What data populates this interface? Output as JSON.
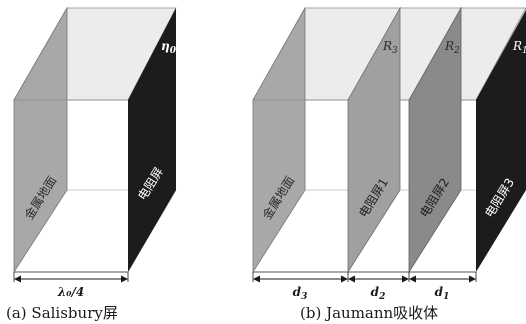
{
  "panel_a": {
    "caption": "(a) Salisbury屏",
    "ground_label": "金属地面",
    "screen_label": "电阻屏",
    "impedance_label": "η",
    "impedance_sub": "0",
    "dimension_label": "λ₀/4",
    "colors": {
      "screen": "#1c1c1c",
      "ground": "#a8a8a8",
      "top": "#ececec"
    }
  },
  "panel_b": {
    "caption": "(b) Jaumann吸收体",
    "ground_label": "金属地面",
    "screens": [
      {
        "label": "电阻屏1",
        "resistance": "R",
        "resistance_sub": "3",
        "color": "#a0a0a0"
      },
      {
        "label": "电阻屏2",
        "resistance": "R",
        "resistance_sub": "2",
        "color": "#8a8a8a"
      },
      {
        "label": "电阻屏3",
        "resistance": "R",
        "resistance_sub": "1",
        "color": "#1c1c1c"
      }
    ],
    "dimensions": [
      {
        "label": "d",
        "sub": "3"
      },
      {
        "label": "d",
        "sub": "2"
      },
      {
        "label": "d",
        "sub": "1"
      }
    ],
    "colors": {
      "ground": "#a8a8a8",
      "top": "#ececec"
    }
  }
}
